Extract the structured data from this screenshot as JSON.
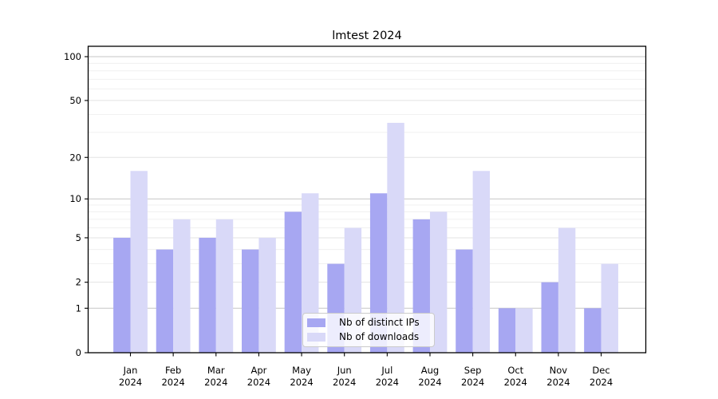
{
  "chart_data": {
    "type": "bar",
    "title": "lmtest 2024",
    "categories": [
      "Jan 2024",
      "Feb 2024",
      "Mar 2024",
      "Apr 2024",
      "May 2024",
      "Jun 2024",
      "Jul 2024",
      "Aug 2024",
      "Sep 2024",
      "Oct 2024",
      "Nov 2024",
      "Dec 2024"
    ],
    "series": [
      {
        "name": "Nb of distinct IPs",
        "color": "#a7a7f2",
        "values": [
          5,
          4,
          5,
          4,
          8,
          3,
          11,
          7,
          4,
          1,
          2,
          1
        ]
      },
      {
        "name": "Nb of downloads",
        "color": "#d9d9f8",
        "values": [
          16,
          7,
          7,
          5,
          11,
          6,
          35,
          8,
          16,
          1,
          6,
          3
        ]
      }
    ],
    "yscale": "log1p",
    "ylim": [
      0,
      115
    ],
    "y_major_ticks": [
      0,
      1,
      2,
      5,
      10,
      20,
      50,
      100
    ],
    "y_decade_ticks": [
      1,
      10,
      100
    ],
    "y_minor_gridlines": [
      3,
      4,
      6,
      7,
      8,
      9,
      30,
      40,
      60,
      70,
      80,
      90
    ],
    "grid": true,
    "legend_position": "lower center",
    "xlabel": "",
    "ylabel": "",
    "colors": {
      "axis": "#000000",
      "background": "#ffffff",
      "grid_decade": "#c5c5c5",
      "grid_labeled": "#e3e3e3",
      "grid_minor": "#efefef"
    }
  }
}
